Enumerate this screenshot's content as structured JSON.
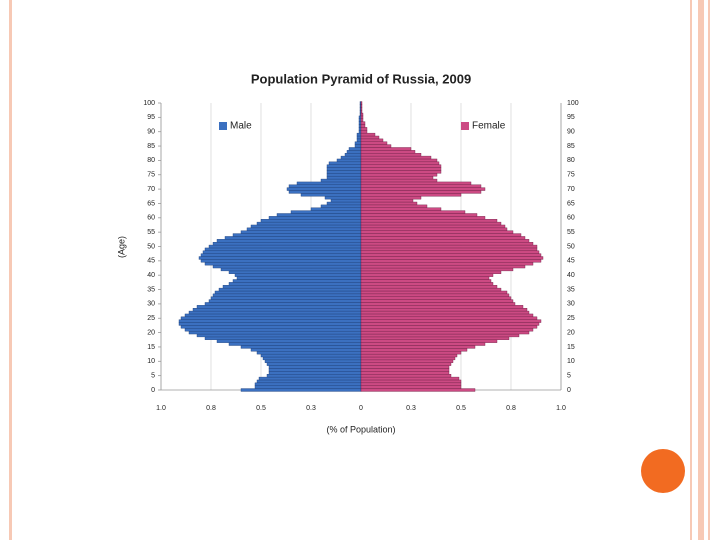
{
  "chart_data": {
    "type": "pyramid",
    "title": "Population Pyramid of Russia, 2009",
    "xlabel": "(% of Population)",
    "ylabel": "(Age)",
    "xlim": [
      -1,
      1
    ],
    "ylim": [
      0,
      100
    ],
    "xticks": [
      {
        "value": -1,
        "label": "1.0"
      },
      {
        "value": -0.75,
        "label": "0.8"
      },
      {
        "value": -0.5,
        "label": "0.5"
      },
      {
        "value": -0.25,
        "label": "0.3"
      },
      0,
      {
        "value": 0.25,
        "label": "0.3"
      },
      {
        "value": 0.5,
        "label": "0.5"
      },
      {
        "value": 0.75,
        "label": "0.8"
      },
      {
        "value": 1,
        "label": "1.0"
      }
    ],
    "yticks": [
      0,
      5,
      10,
      15,
      20,
      25,
      30,
      35,
      40,
      45,
      50,
      55,
      60,
      65,
      70,
      75,
      80,
      85,
      90,
      95,
      100
    ],
    "grid": true,
    "ages": [
      0,
      1,
      2,
      3,
      4,
      5,
      6,
      7,
      8,
      9,
      10,
      11,
      12,
      13,
      14,
      15,
      16,
      17,
      18,
      19,
      20,
      21,
      22,
      23,
      24,
      25,
      26,
      27,
      28,
      29,
      30,
      31,
      32,
      33,
      34,
      35,
      36,
      37,
      38,
      39,
      40,
      41,
      42,
      43,
      44,
      45,
      46,
      47,
      48,
      49,
      50,
      51,
      52,
      53,
      54,
      55,
      56,
      57,
      58,
      59,
      60,
      61,
      62,
      63,
      64,
      65,
      66,
      67,
      68,
      69,
      70,
      71,
      72,
      73,
      74,
      75,
      76,
      77,
      78,
      79,
      80,
      81,
      82,
      83,
      84,
      85,
      86,
      87,
      88,
      89,
      90,
      91,
      92,
      93,
      94,
      95,
      96,
      97,
      98,
      99,
      100
    ],
    "series": [
      {
        "name": "Male",
        "color": "#3b70c0",
        "edge": "#1d3f78",
        "values": [
          -0.6,
          -0.53,
          -0.53,
          -0.52,
          -0.51,
          -0.47,
          -0.46,
          -0.46,
          -0.46,
          -0.47,
          -0.48,
          -0.49,
          -0.5,
          -0.52,
          -0.55,
          -0.6,
          -0.66,
          -0.72,
          -0.78,
          -0.82,
          -0.86,
          -0.88,
          -0.9,
          -0.91,
          -0.91,
          -0.9,
          -0.88,
          -0.86,
          -0.84,
          -0.82,
          -0.78,
          -0.76,
          -0.75,
          -0.74,
          -0.73,
          -0.71,
          -0.69,
          -0.66,
          -0.64,
          -0.62,
          -0.63,
          -0.66,
          -0.7,
          -0.74,
          -0.78,
          -0.8,
          -0.81,
          -0.8,
          -0.79,
          -0.78,
          -0.76,
          -0.74,
          -0.72,
          -0.68,
          -0.64,
          -0.6,
          -0.57,
          -0.55,
          -0.52,
          -0.5,
          -0.46,
          -0.42,
          -0.35,
          -0.25,
          -0.2,
          -0.17,
          -0.15,
          -0.18,
          -0.3,
          -0.36,
          -0.37,
          -0.36,
          -0.32,
          -0.2,
          -0.17,
          -0.17,
          -0.17,
          -0.17,
          -0.17,
          -0.16,
          -0.12,
          -0.1,
          -0.08,
          -0.07,
          -0.06,
          -0.03,
          -0.03,
          -0.02,
          -0.02,
          -0.02,
          -0.01,
          -0.01,
          -0.01,
          -0.01,
          -0.01,
          -0.01,
          -0.005,
          -0.005,
          -0.005,
          -0.005,
          -0.005
        ]
      },
      {
        "name": "Female",
        "color": "#cc4a83",
        "edge": "#6e1f45",
        "values": [
          0.57,
          0.5,
          0.5,
          0.5,
          0.49,
          0.45,
          0.44,
          0.44,
          0.44,
          0.45,
          0.46,
          0.47,
          0.48,
          0.5,
          0.53,
          0.57,
          0.62,
          0.68,
          0.74,
          0.79,
          0.84,
          0.86,
          0.88,
          0.89,
          0.9,
          0.88,
          0.86,
          0.84,
          0.83,
          0.81,
          0.77,
          0.76,
          0.75,
          0.74,
          0.73,
          0.7,
          0.68,
          0.66,
          0.65,
          0.64,
          0.66,
          0.7,
          0.76,
          0.82,
          0.86,
          0.9,
          0.91,
          0.9,
          0.89,
          0.88,
          0.88,
          0.86,
          0.84,
          0.82,
          0.8,
          0.76,
          0.73,
          0.72,
          0.7,
          0.68,
          0.62,
          0.58,
          0.52,
          0.4,
          0.33,
          0.28,
          0.26,
          0.3,
          0.5,
          0.6,
          0.62,
          0.6,
          0.55,
          0.38,
          0.36,
          0.38,
          0.4,
          0.4,
          0.4,
          0.39,
          0.38,
          0.35,
          0.3,
          0.27,
          0.25,
          0.15,
          0.13,
          0.11,
          0.09,
          0.07,
          0.03,
          0.03,
          0.02,
          0.02,
          0.01,
          0.01,
          0.01,
          0.005,
          0.005,
          0.005,
          0.005
        ]
      }
    ]
  }
}
